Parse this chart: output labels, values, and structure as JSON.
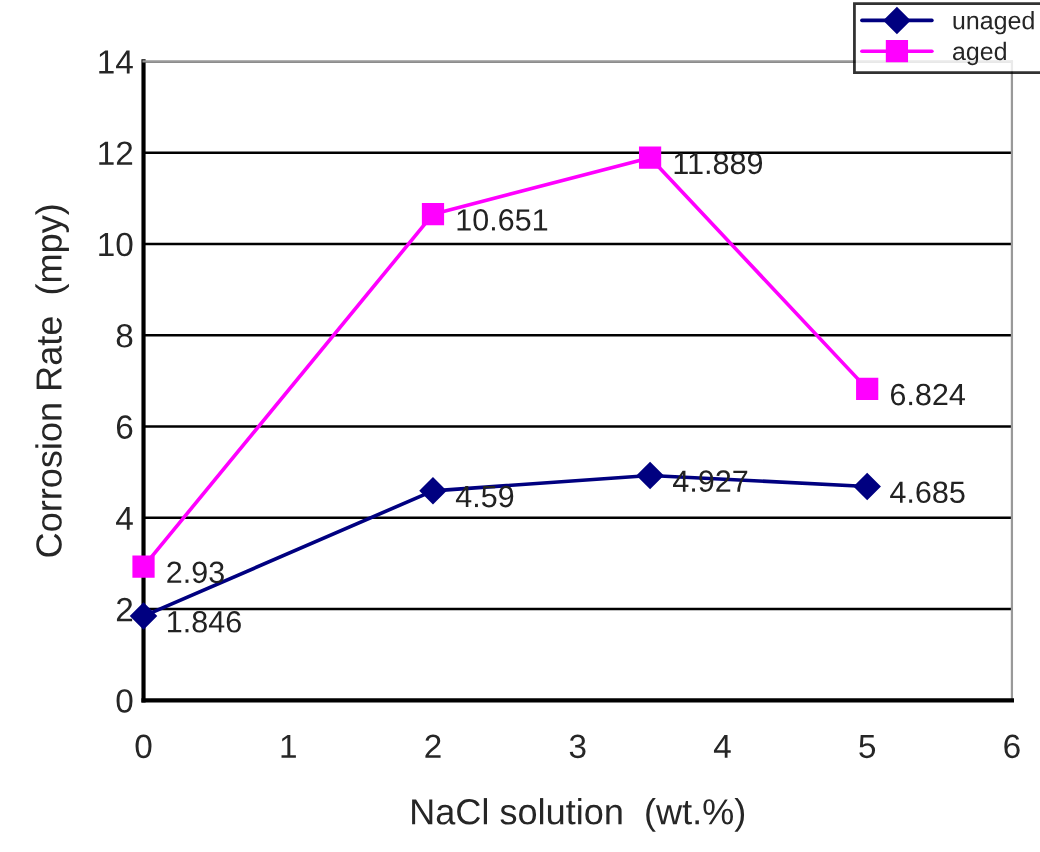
{
  "chart_data": {
    "type": "line",
    "xlabel": "NaCl solution  (wt.%)",
    "ylabel": "Corrosion Rate  (mpy)",
    "x": [
      0,
      2,
      3.5,
      5
    ],
    "series": [
      {
        "name": "unaged",
        "color": "#000080",
        "marker": "diamond",
        "values": [
          1.846,
          4.59,
          4.927,
          4.685
        ]
      },
      {
        "name": "aged",
        "color": "#ff00ff",
        "marker": "square",
        "values": [
          2.93,
          10.651,
          11.889,
          6.824
        ]
      }
    ],
    "xlim": [
      0,
      6
    ],
    "xticks": [
      0,
      1,
      2,
      3,
      4,
      5,
      6
    ],
    "ylim": [
      0,
      14
    ],
    "yticks": [
      0,
      2,
      4,
      6,
      8,
      10,
      12,
      14
    ],
    "grid": "y",
    "legend": "top right",
    "data_labels": true,
    "line_style": "solid"
  }
}
